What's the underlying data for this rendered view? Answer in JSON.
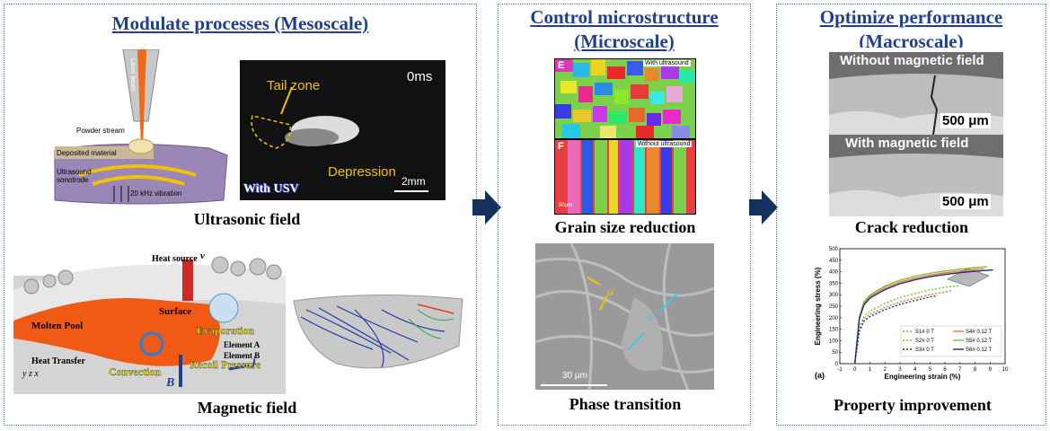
{
  "panels": [
    {
      "title": "Modulate processes (Mesoscale)"
    },
    {
      "title_line1": "Control microstructure",
      "title_line2": "(Microscale)"
    },
    {
      "title_line1": "Optimize performance",
      "title_line2": "(Macroscale)"
    }
  ],
  "meso": {
    "ultrasonic_caption": "Ultrasonic  field",
    "magnetic_caption": "Magnetic field",
    "nozzle": {
      "laser": "Laser beam",
      "powder": "Powder stream",
      "deposit": "Deposited material",
      "sonotrode": "Ultrasound\nsonotrode",
      "vibration": "20 kHz vibration"
    },
    "usv_photo": {
      "time": "0ms",
      "tail": "Tail zone",
      "depression": "Depression",
      "scale": "2mm",
      "tag": "With USV"
    },
    "pool": {
      "heat_source": "Heat source",
      "v": "v",
      "molten": "Molten Pool",
      "surface": "Surface",
      "evaporation": "Evaporation",
      "element_a": "Element A",
      "element_b": "Element B",
      "heat_transfer": "Heat Transfer",
      "convection": "Convection",
      "recoil": "Recoil Pressure",
      "j": "j",
      "b": "B",
      "axes": "y z x"
    }
  },
  "micro": {
    "ebsd_e": {
      "letter": "E",
      "tag": "With ultrasound"
    },
    "ebsd_f": {
      "letter": "F",
      "tag": "Without ultrasound",
      "scale": "50μm"
    },
    "grain_caption": "Grain  size  reduction",
    "sem": {
      "alpha": "α'",
      "beta": "β",
      "scale": "30 μm"
    },
    "phase_caption": "Phase transition"
  },
  "macro": {
    "without_label": "Without magnetic field",
    "with_label": "With magnetic field",
    "scale_top": "500 μm",
    "scale_bottom": "500 μm",
    "crack_caption": "Crack reduction",
    "property_caption": "Property improvement"
  },
  "chart_data": {
    "type": "line",
    "panel_label": "(a)",
    "xlabel": "Engineering strain (%)",
    "ylabel": "Engineering stress (%)",
    "xlim": [
      -1,
      10
    ],
    "ylim": [
      0,
      500
    ],
    "xticks": [
      -1,
      0,
      1,
      2,
      3,
      4,
      5,
      6,
      7,
      8,
      9,
      10
    ],
    "yticks": [
      0,
      50,
      100,
      150,
      200,
      250,
      300,
      350,
      400,
      450,
      500
    ],
    "legend_position": "bottom-right",
    "series": [
      {
        "name": "S1# 0 T",
        "color": "#e8772e",
        "dash": true,
        "x": [
          0,
          0.3,
          0.6,
          1,
          2,
          3,
          4,
          5,
          6,
          6.5
        ],
        "y": [
          0,
          150,
          195,
          215,
          245,
          268,
          285,
          300,
          312,
          318
        ]
      },
      {
        "name": "S2# 0 T",
        "color": "#7cc242",
        "dash": true,
        "x": [
          0,
          0.3,
          0.6,
          1,
          2,
          3,
          4,
          5,
          6,
          7
        ],
        "y": [
          0,
          160,
          205,
          228,
          262,
          288,
          305,
          320,
          332,
          340
        ]
      },
      {
        "name": "S3# 0 T",
        "color": "#1f2d7a",
        "dash": true,
        "x": [
          0,
          0.3,
          0.6,
          1,
          2,
          3,
          4,
          5,
          5.5
        ],
        "y": [
          0,
          140,
          185,
          205,
          235,
          258,
          275,
          290,
          296
        ]
      },
      {
        "name": "S4# 0.12 T",
        "color": "#e8772e",
        "dash": false,
        "x": [
          0,
          0.3,
          0.6,
          1,
          2,
          3,
          4,
          5,
          6,
          7,
          8,
          8.6
        ],
        "y": [
          0,
          200,
          262,
          292,
          330,
          355,
          372,
          385,
          395,
          403,
          410,
          413
        ]
      },
      {
        "name": "S5# 0.12 T",
        "color": "#7cc242",
        "dash": false,
        "x": [
          0,
          0.3,
          0.6,
          1,
          2,
          3,
          4,
          5,
          6,
          7,
          8,
          8.8
        ],
        "y": [
          0,
          205,
          268,
          298,
          338,
          363,
          380,
          393,
          403,
          411,
          418,
          422
        ]
      },
      {
        "name": "S6# 0.12 T",
        "color": "#1f2d7a",
        "dash": false,
        "x": [
          0,
          0.3,
          0.6,
          1,
          2,
          3,
          4,
          5,
          6,
          7,
          8,
          9.2
        ],
        "y": [
          0,
          195,
          255,
          285,
          322,
          348,
          365,
          378,
          388,
          396,
          402,
          408
        ]
      }
    ]
  }
}
